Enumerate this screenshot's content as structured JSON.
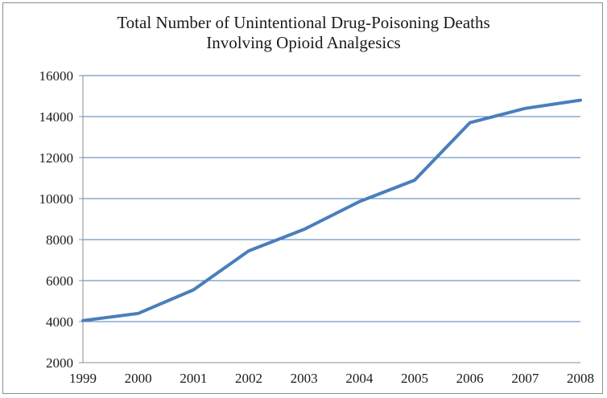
{
  "chart_data": {
    "type": "line",
    "title_lines": [
      "Total Number of Unintentional Drug-Poisoning Deaths",
      "Involving Opioid Analgesics"
    ],
    "xlabel": "",
    "ylabel": "",
    "categories": [
      "1999",
      "2000",
      "2001",
      "2002",
      "2003",
      "2004",
      "2005",
      "2006",
      "2007",
      "2008"
    ],
    "series": [
      {
        "values": [
          4050,
          4400,
          5550,
          7450,
          8500,
          9850,
          10900,
          13700,
          14400,
          14800
        ]
      }
    ],
    "ylim": [
      2000,
      16000
    ],
    "yticks": [
      2000,
      4000,
      6000,
      8000,
      10000,
      12000,
      14000,
      16000
    ],
    "grid": true,
    "legend": "none",
    "colors": {
      "line": "#4a7ebb",
      "grid": "#4a7ebb",
      "axis": "#8c8c8c"
    }
  }
}
